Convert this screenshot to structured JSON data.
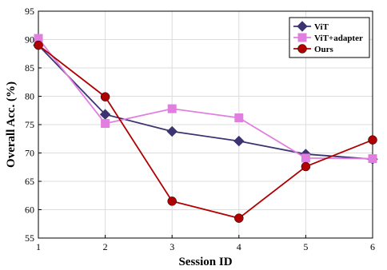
{
  "chart_data": {
    "type": "line",
    "xlabel": "Session ID",
    "ylabel": "Overall Acc. (%)",
    "x": [
      1,
      2,
      3,
      4,
      5,
      6
    ],
    "xlim": [
      1,
      6
    ],
    "ylim": [
      55,
      95
    ],
    "yticks": [
      55,
      60,
      65,
      70,
      75,
      80,
      85,
      90,
      95
    ],
    "grid": true,
    "legend_position": "top-right",
    "series": [
      {
        "name": "ViT",
        "color": "#3b3470",
        "marker": "diamond",
        "values": [
          89.0,
          76.8,
          73.8,
          72.1,
          69.8,
          68.9
        ]
      },
      {
        "name": "ViT+adapter",
        "color": "#e07fe0",
        "marker": "square",
        "values": [
          90.2,
          75.2,
          77.8,
          76.2,
          69.1,
          69.0
        ]
      },
      {
        "name": "Ours",
        "color": "#b00000",
        "marker": "circle",
        "values": [
          89.0,
          79.9,
          61.5,
          58.5,
          67.6,
          72.3
        ]
      }
    ]
  }
}
